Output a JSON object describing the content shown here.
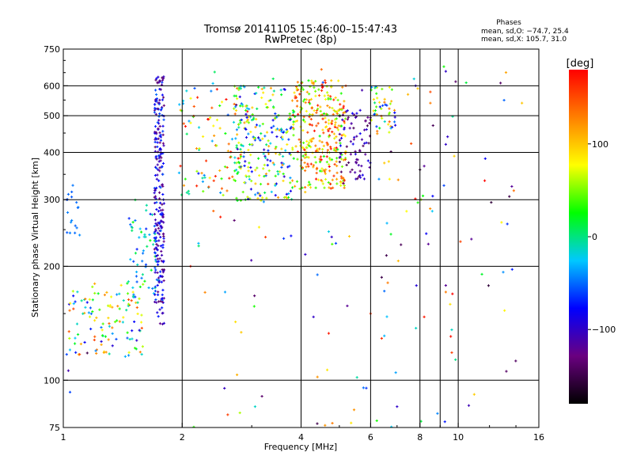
{
  "chart_data": {
    "type": "scatter",
    "title": "Tromsø 20141105 15:46:00–15:47:43",
    "subtitle": "RwPretec (8p)",
    "xlabel": "Frequency [MHz]",
    "ylabel": "Stationary phase Virtual Height [km]",
    "x_scale": "log",
    "y_scale": "log",
    "xlim": [
      1,
      16
    ],
    "ylim": [
      75,
      750
    ],
    "x_ticks": [
      1,
      2,
      4,
      6,
      8,
      10,
      16
    ],
    "x_tick_labels": [
      "1",
      "2",
      "4",
      "6",
      "8",
      "10",
      "16"
    ],
    "y_ticks": [
      75,
      100,
      200,
      300,
      400,
      500,
      600,
      750
    ],
    "y_tick_labels": [
      "75",
      "100",
      "200",
      "300",
      "400",
      "500",
      "600",
      "750"
    ],
    "x_gridlines": [
      2,
      4,
      6,
      8,
      9,
      10
    ],
    "y_gridlines": [
      100,
      200,
      300,
      400,
      500,
      600
    ],
    "grid": true,
    "stats": {
      "title": "Phases",
      "line1": "mean, sd,O: −74.7, 25.4",
      "line2": "mean, sd,X: 105.7, 31.0"
    },
    "colorbar": {
      "label": "[deg]",
      "range": [
        -180,
        180
      ],
      "ticks": [
        100,
        0,
        -100
      ],
      "tick_labels": [
        "100",
        "0",
        "−100"
      ],
      "stops": [
        "#000000",
        "#6a0080",
        "#0000ff",
        "#00c8ff",
        "#00ff00",
        "#ffff00",
        "#ff8000",
        "#ff0000"
      ]
    },
    "clusters": [
      {
        "name": "",
        "x": [
          1.03,
          1.6
        ],
        "y": [
          115,
          180
        ],
        "phase": [
          -100,
          160
        ],
        "n": 120
      },
      {
        "name": "",
        "x": [
          1.45,
          1.75
        ],
        "y": [
          160,
          300
        ],
        "phase": [
          -70,
          30
        ],
        "n": 60
      },
      {
        "name": "",
        "x": [
          1.7,
          1.8
        ],
        "y": [
          140,
          640
        ],
        "phase": [
          -140,
          -50
        ],
        "n": 260
      },
      {
        "name": "",
        "x": [
          1.02,
          1.1
        ],
        "y": [
          240,
          330
        ],
        "phase": [
          -60,
          -40
        ],
        "n": 12
      },
      {
        "name": "",
        "x": [
          1.95,
          3.0
        ],
        "y": [
          300,
          600
        ],
        "phase": [
          -60,
          180
        ],
        "n": 90
      },
      {
        "name": "",
        "x": [
          2.7,
          3.8
        ],
        "y": [
          295,
          600
        ],
        "phase": [
          -100,
          120
        ],
        "n": 240
      },
      {
        "name": "",
        "x": [
          3.8,
          5.2
        ],
        "y": [
          320,
          620
        ],
        "phase": [
          20,
          180
        ],
        "n": 330
      },
      {
        "name": "",
        "x": [
          5.0,
          6.0
        ],
        "y": [
          340,
          520
        ],
        "phase": [
          -150,
          -80
        ],
        "n": 80
      },
      {
        "name": "",
        "x": [
          6.0,
          7.0
        ],
        "y": [
          440,
          600
        ],
        "phase": [
          -100,
          150
        ],
        "n": 50
      },
      {
        "name": "",
        "x": [
          2.0,
          14.5
        ],
        "y": [
          75,
          680
        ],
        "phase": [
          -160,
          180
        ],
        "n": 110
      }
    ],
    "points": [
      [
        1.02,
        300,
        -60
      ],
      [
        1.03,
        310,
        -50
      ],
      [
        1.05,
        305,
        -55
      ],
      [
        1.08,
        295,
        -50
      ],
      [
        1.04,
        245,
        -45
      ],
      [
        1.07,
        245,
        -50
      ],
      [
        1.02,
        117,
        -60
      ],
      [
        1.1,
        117,
        150
      ],
      [
        1.15,
        118,
        -150
      ],
      [
        1.04,
        93,
        -60
      ],
      [
        1.03,
        106,
        -110
      ],
      [
        4.4,
        102,
        120
      ],
      [
        4.6,
        76,
        120
      ],
      [
        4.8,
        77,
        130
      ],
      [
        2.8,
        82,
        60
      ],
      [
        6.4,
        129,
        160
      ],
      [
        6.5,
        131,
        -30
      ],
      [
        4.3,
        147,
        -100
      ],
      [
        4.7,
        133,
        170
      ],
      [
        6.0,
        150,
        160
      ],
      [
        8.2,
        147,
        170
      ],
      [
        8.3,
        244,
        -80
      ],
      [
        8.4,
        229,
        -120
      ],
      [
        9.3,
        178,
        -120
      ],
      [
        9.3,
        171,
        130
      ],
      [
        9.3,
        420,
        -100
      ],
      [
        9.4,
        440,
        -100
      ],
      [
        9.2,
        327,
        -60
      ],
      [
        9.3,
        655,
        -100
      ],
      [
        10.8,
        236,
        -120
      ],
      [
        12.8,
        610,
        -140
      ],
      [
        13.0,
        193,
        -40
      ],
      [
        14.5,
        540,
        100
      ],
      [
        8.2,
        368,
        -120
      ],
      [
        8.0,
        360,
        -160
      ],
      [
        7.6,
        422,
        150
      ],
      [
        6.7,
        340,
        80
      ],
      [
        6.5,
        375,
        100
      ],
      [
        6.6,
        260,
        -30
      ],
      [
        6.4,
        187,
        -150
      ],
      [
        6.5,
        172,
        -50
      ],
      [
        7.8,
        600,
        -100
      ],
      [
        7.9,
        590,
        100
      ],
      [
        8.5,
        578,
        150
      ],
      [
        8.5,
        540,
        130
      ],
      [
        6.3,
        340,
        -40
      ],
      [
        4.1,
        215,
        -100
      ],
      [
        4.4,
        190,
        -50
      ],
      [
        4.7,
        247,
        -20
      ],
      [
        4.9,
        230,
        -60
      ],
      [
        5.3,
        240,
        100
      ],
      [
        3.3,
        330,
        150
      ],
      [
        2.3,
        380,
        160
      ],
      [
        2.4,
        280,
        140
      ],
      [
        2.5,
        270,
        170
      ],
      [
        2.1,
        200,
        170
      ],
      [
        2.2,
        230,
        -30
      ],
      [
        2.4,
        470,
        80
      ],
      [
        2.9,
        530,
        100
      ]
    ]
  }
}
